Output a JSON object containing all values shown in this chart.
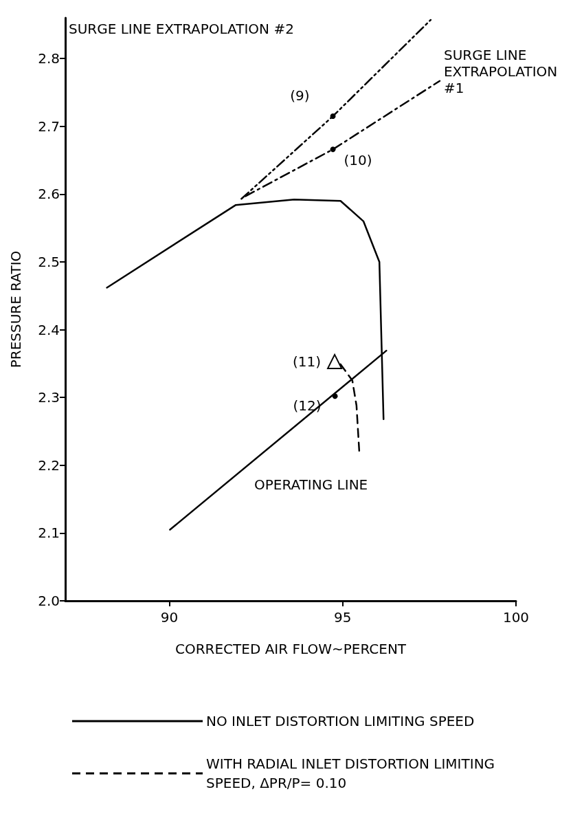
{
  "chart_data": {
    "type": "line",
    "xlabel": "CORRECTED AIR FLOW~PERCENT",
    "ylabel": "PRESSURE RATIO",
    "xlim": [
      87,
      100
    ],
    "xticks": [
      90,
      95,
      100
    ],
    "ylim": [
      2.0,
      2.86
    ],
    "yticks": [
      {
        "value": 2.0,
        "label": "2.0"
      },
      2.1,
      2.2,
      2.3,
      2.4,
      2.5,
      2.6,
      2.7,
      2.8
    ],
    "grid": false,
    "legend": "bottom",
    "marker": "none",
    "series": [
      {
        "name": "NO INLET DISTORTION LIMITING SPEED",
        "color": "#000000",
        "line_style": "solid",
        "x": [
          88.2,
          91.92,
          93.6,
          94.94,
          95.6,
          96.06,
          96.18
        ],
        "values": [
          2.462,
          2.584,
          2.592,
          2.59,
          2.56,
          2.5,
          2.268
        ]
      },
      {
        "color": "#000000",
        "line_style": "solid",
        "x": [
          90.02,
          96.26
        ],
        "values": [
          2.105,
          2.369
        ]
      },
      {
        "name": "WITH RADIAL INLET DISTORTION LIMITING SPEED, ΔPR/P= 0.10",
        "color": "#000000",
        "line_style": "dashed",
        "x": [
          94.94,
          95.28,
          95.4,
          95.48
        ],
        "values": [
          2.349,
          2.325,
          2.288,
          2.22
        ]
      },
      {
        "color": "#000000",
        "line_style": "dashdotdot",
        "x": [
          92.08,
          94.72,
          97.54
        ],
        "values": [
          2.593,
          2.715,
          2.857
        ]
      },
      {
        "color": "#000000",
        "line_style": "dashdot",
        "x": [
          92.2,
          94.72,
          97.8
        ],
        "values": [
          2.597,
          2.666,
          2.767
        ]
      },
      {
        "type": "scatter",
        "marker": "circle",
        "color": "#000000",
        "x": [
          94.72,
          94.72,
          94.78
        ],
        "values": [
          2.715,
          2.666,
          2.302
        ]
      },
      {
        "type": "scatter",
        "marker": "triangle",
        "color": "#000000",
        "x": [
          94.77
        ],
        "values": [
          2.353
        ]
      }
    ],
    "annotations": [
      "SURGE LINE EXTRAPOLATION #2",
      {
        "text": "SURGE LINE\nEXTRAPOLATION\n#1",
        "x": 97.8,
        "y": 2.767
      },
      {
        "text": "(9)",
        "x": 94.72,
        "y": 2.715
      },
      {
        "text": "(10)",
        "x": 94.72,
        "y": 2.666
      },
      {
        "text": "(11)",
        "x": 94.77,
        "y": 2.353
      },
      {
        "text": "(12)",
        "x": 94.78,
        "y": 2.302
      },
      "OPERATING LINE"
    ]
  }
}
